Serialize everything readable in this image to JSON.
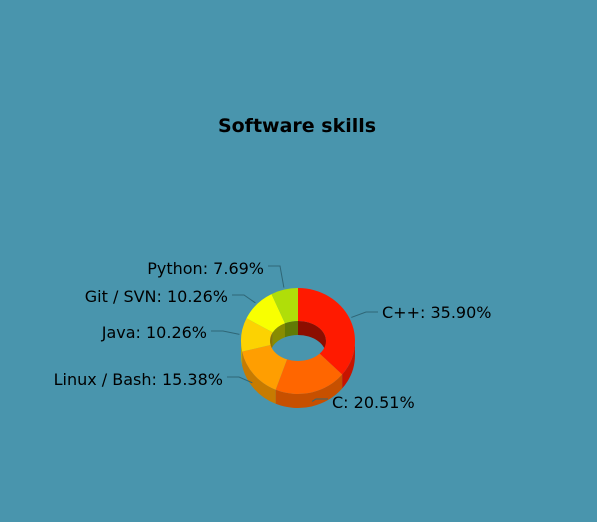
{
  "chart_data": {
    "type": "pie",
    "variant": "donut-3d",
    "title": "Software skills",
    "legend": "none",
    "background_color": "#4995ad",
    "slices": [
      {
        "label": "C++",
        "value": 35.9,
        "label_text": "C++: 35.90%",
        "color": "#ff1a00"
      },
      {
        "label": "C",
        "value": 20.51,
        "label_text": "C: 20.51%",
        "color": "#ff6600"
      },
      {
        "label": "Linux / Bash",
        "value": 15.38,
        "label_text": "Linux / Bash: 15.38%",
        "color": "#ff9e01"
      },
      {
        "label": "Java",
        "value": 10.26,
        "label_text": "Java: 10.26%",
        "color": "#fcd202"
      },
      {
        "label": "Git / SVN",
        "value": 10.26,
        "label_text": "Git / SVN: 10.26%",
        "color": "#f8ff01"
      },
      {
        "label": "Python",
        "value": 7.69,
        "label_text": "Python: 7.69%",
        "color": "#b0de09"
      }
    ]
  }
}
